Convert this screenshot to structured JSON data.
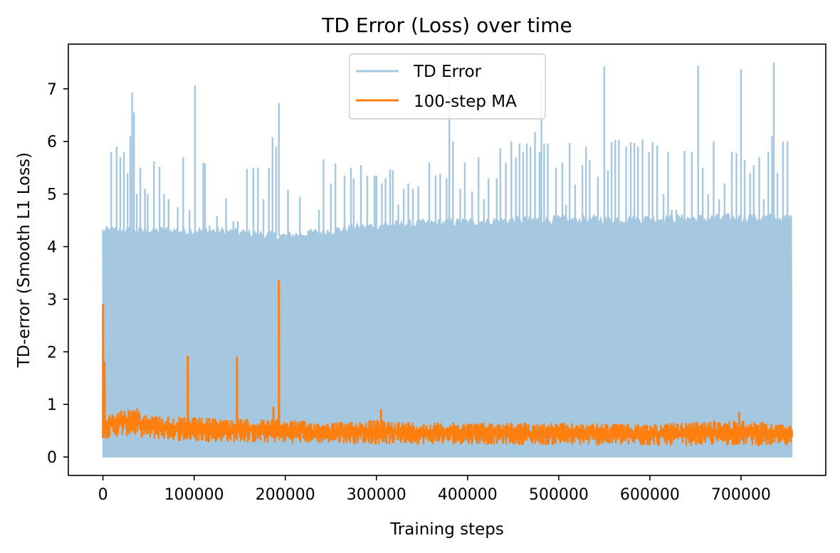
{
  "chart_data": {
    "type": "line",
    "title": "TD Error (Loss) over time",
    "xlabel": "Training steps",
    "ylabel": "TD-error (Smooth L1 Loss)",
    "xlim": [
      -38000,
      793000
    ],
    "ylim": [
      -0.35,
      7.85
    ],
    "xticks": [
      0,
      100000,
      200000,
      300000,
      400000,
      500000,
      600000,
      700000
    ],
    "yticks": [
      0,
      1,
      2,
      3,
      4,
      5,
      6,
      7
    ],
    "grid": false,
    "legend_position": "top-center",
    "x_max": 756000,
    "series": [
      {
        "name": "TD Error",
        "color": "#a6c7e0",
        "style": "dense raw signal (per-step)",
        "band_low": 0.0,
        "band_high_profile": [
          [
            0,
            4.3
          ],
          [
            120000,
            4.3
          ],
          [
            200000,
            4.2
          ],
          [
            300000,
            4.4
          ],
          [
            450000,
            4.5
          ],
          [
            756000,
            4.55
          ]
        ],
        "spikes": [
          [
            1000,
            3.9
          ],
          [
            5000,
            4.3
          ],
          [
            9000,
            5.8
          ],
          [
            15000,
            5.9
          ],
          [
            19000,
            5.7
          ],
          [
            23000,
            5.8
          ],
          [
            27000,
            5.4
          ],
          [
            30000,
            6.1
          ],
          [
            32000,
            6.93
          ],
          [
            34000,
            6.55
          ],
          [
            37000,
            5.0
          ],
          [
            41000,
            5.5
          ],
          [
            46000,
            5.1
          ],
          [
            49000,
            5.0
          ],
          [
            56000,
            5.62
          ],
          [
            62000,
            5.52
          ],
          [
            67000,
            5.0
          ],
          [
            72000,
            4.9
          ],
          [
            82000,
            4.75
          ],
          [
            88000,
            5.7
          ],
          [
            95000,
            4.7
          ],
          [
            101000,
            7.07
          ],
          [
            110000,
            5.6
          ],
          [
            112000,
            5.58
          ],
          [
            117000,
            4.4
          ],
          [
            125000,
            4.58
          ],
          [
            135000,
            4.92
          ],
          [
            143000,
            4.48
          ],
          [
            148000,
            4.48
          ],
          [
            158000,
            5.48
          ],
          [
            165000,
            5.5
          ],
          [
            170000,
            5.5
          ],
          [
            176000,
            4.9
          ],
          [
            182000,
            5.5
          ],
          [
            186000,
            6.08
          ],
          [
            190000,
            5.9
          ],
          [
            193000,
            6.73
          ],
          [
            203000,
            5.08
          ],
          [
            216000,
            4.95
          ],
          [
            225000,
            4.3
          ],
          [
            237000,
            4.7
          ],
          [
            242000,
            5.66
          ],
          [
            250000,
            5.2
          ],
          [
            255000,
            5.58
          ],
          [
            265000,
            5.35
          ],
          [
            272000,
            5.5
          ],
          [
            275000,
            5.3
          ],
          [
            283000,
            5.55
          ],
          [
            290000,
            5.35
          ],
          [
            298000,
            5.35
          ],
          [
            300000,
            5.35
          ],
          [
            306000,
            5.2
          ],
          [
            310000,
            5.3
          ],
          [
            315000,
            5.47
          ],
          [
            318000,
            5.45
          ],
          [
            324000,
            4.8
          ],
          [
            330000,
            5.1
          ],
          [
            335000,
            5.2
          ],
          [
            340000,
            5.1
          ],
          [
            346000,
            5.15
          ],
          [
            358000,
            5.6
          ],
          [
            365000,
            5.35
          ],
          [
            370000,
            5.38
          ],
          [
            377000,
            5.3
          ],
          [
            380000,
            7.12
          ],
          [
            384000,
            6.0
          ],
          [
            392000,
            5.1
          ],
          [
            397000,
            5.6
          ],
          [
            405000,
            5.05
          ],
          [
            412000,
            5.7
          ],
          [
            418000,
            4.9
          ],
          [
            423000,
            5.3
          ],
          [
            432000,
            5.3
          ],
          [
            436000,
            5.87
          ],
          [
            442000,
            5.6
          ],
          [
            448000,
            6.0
          ],
          [
            453000,
            5.7
          ],
          [
            457000,
            5.96
          ],
          [
            461000,
            5.8
          ],
          [
            465000,
            5.96
          ],
          [
            469000,
            5.9
          ],
          [
            474000,
            6.18
          ],
          [
            479000,
            5.8
          ],
          [
            481000,
            7.15
          ],
          [
            484000,
            5.96
          ],
          [
            488000,
            5.96
          ],
          [
            497000,
            5.5
          ],
          [
            504000,
            5.6
          ],
          [
            508000,
            4.8
          ],
          [
            512000,
            5.97
          ],
          [
            518000,
            5.18
          ],
          [
            526000,
            5.55
          ],
          [
            530000,
            5.9
          ],
          [
            534000,
            5.65
          ],
          [
            543000,
            5.33
          ],
          [
            550000,
            7.43
          ],
          [
            554000,
            5.45
          ],
          [
            558000,
            5.99
          ],
          [
            562000,
            6.03
          ],
          [
            566000,
            6.03
          ],
          [
            574000,
            5.9
          ],
          [
            579000,
            5.99
          ],
          [
            583000,
            5.97
          ],
          [
            587000,
            5.9
          ],
          [
            592000,
            6.04
          ],
          [
            599000,
            5.8
          ],
          [
            603000,
            5.99
          ],
          [
            608000,
            5.92
          ],
          [
            615000,
            5.0
          ],
          [
            620000,
            5.8
          ],
          [
            624000,
            4.7
          ],
          [
            629000,
            4.7
          ],
          [
            638000,
            5.82
          ],
          [
            646000,
            5.8
          ],
          [
            653000,
            7.44
          ],
          [
            658000,
            5.5
          ],
          [
            664000,
            5.0
          ],
          [
            670000,
            6.0
          ],
          [
            676000,
            4.9
          ],
          [
            682000,
            5.2
          ],
          [
            690000,
            5.8
          ],
          [
            695000,
            5.78
          ],
          [
            700000,
            7.37
          ],
          [
            704000,
            5.65
          ],
          [
            710000,
            5.4
          ],
          [
            714000,
            5.55
          ],
          [
            720000,
            5.7
          ],
          [
            725000,
            4.9
          ],
          [
            730000,
            5.8
          ],
          [
            734000,
            6.1
          ],
          [
            736000,
            7.5
          ],
          [
            740000,
            5.4
          ],
          [
            746000,
            6.0
          ],
          [
            751000,
            6.0
          ]
        ]
      },
      {
        "name": "100-step MA",
        "color": "#ff7f0e",
        "style": "moving average",
        "band_profile": [
          [
            0,
            0.35,
            0.75
          ],
          [
            20000,
            0.4,
            0.9
          ],
          [
            35000,
            0.4,
            0.95
          ],
          [
            50000,
            0.35,
            0.8
          ],
          [
            90000,
            0.3,
            0.75
          ],
          [
            150000,
            0.28,
            0.72
          ],
          [
            200000,
            0.27,
            0.7
          ],
          [
            250000,
            0.27,
            0.65
          ],
          [
            300000,
            0.25,
            0.7
          ],
          [
            350000,
            0.25,
            0.65
          ],
          [
            450000,
            0.24,
            0.65
          ],
          [
            600000,
            0.22,
            0.62
          ],
          [
            700000,
            0.23,
            0.7
          ],
          [
            756000,
            0.2,
            0.6
          ]
        ],
        "spikes": [
          [
            0,
            2.9
          ],
          [
            1500,
            1.8
          ],
          [
            93000,
            1.92
          ],
          [
            147000,
            1.9
          ],
          [
            187000,
            0.95
          ],
          [
            193000,
            3.35
          ],
          [
            305000,
            0.9
          ],
          [
            698000,
            0.85
          ]
        ]
      }
    ]
  }
}
